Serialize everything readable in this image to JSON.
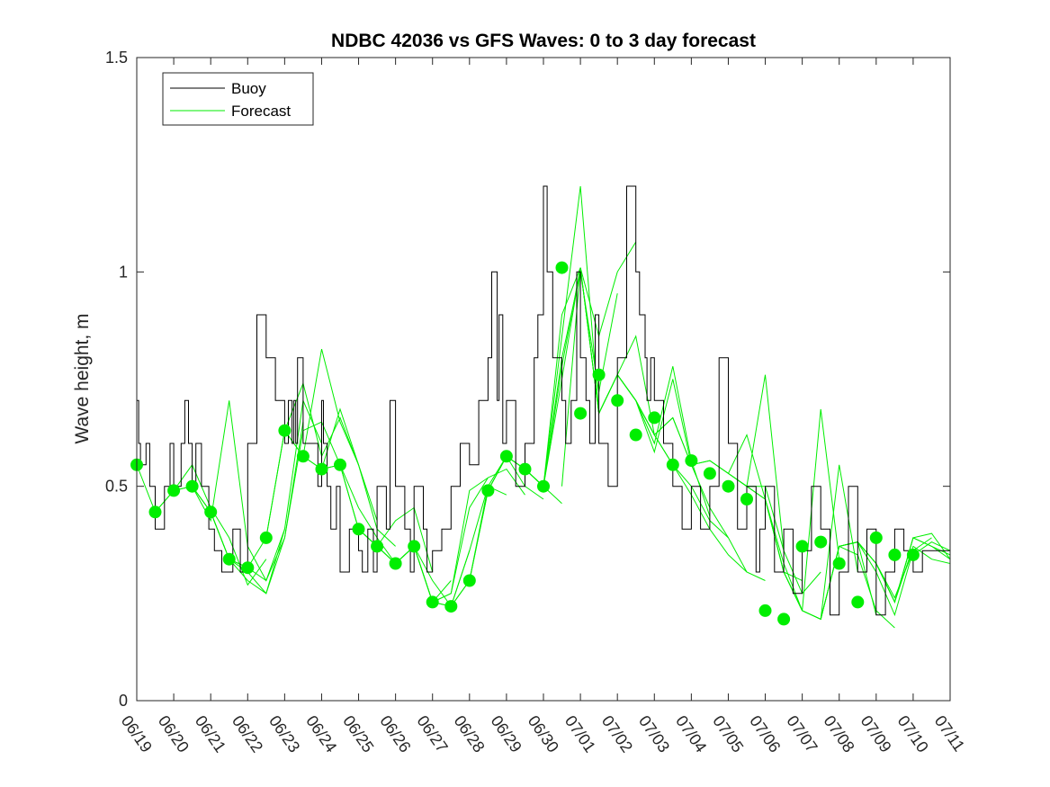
{
  "chart_data": {
    "type": "line",
    "title": "NDBC 42036 vs GFS Waves: 0 to 3 day forecast",
    "xlabel": "",
    "ylabel": "Wave height, m",
    "ylim": [
      0,
      1.5
    ],
    "xlim_days": [
      0,
      22
    ],
    "y_ticks": [
      "0",
      "0.5",
      "1",
      "1.5"
    ],
    "x_ticks": [
      "06/19",
      "06/20",
      "06/21",
      "06/22",
      "06/23",
      "06/24",
      "06/25",
      "06/26",
      "06/27",
      "06/28",
      "06/29",
      "06/30",
      "07/01",
      "07/02",
      "07/03",
      "07/04",
      "07/05",
      "07/06",
      "07/07",
      "07/08",
      "07/09",
      "07/10",
      "07/11"
    ],
    "grid": false,
    "legend": {
      "position": "top-left",
      "entries": [
        "Buoy",
        "Forecast"
      ]
    },
    "colors": {
      "buoy": "#000000",
      "forecast": "#00ee00"
    },
    "series": [
      {
        "name": "Buoy",
        "x": [
          0,
          0.05,
          0.1,
          0.25,
          0.35,
          0.5,
          0.75,
          0.9,
          1.0,
          1.2,
          1.3,
          1.4,
          1.5,
          1.6,
          1.75,
          1.95,
          2.1,
          2.3,
          2.5,
          2.6,
          2.8,
          3.0,
          3.25,
          3.5,
          3.75,
          4.0,
          4.1,
          4.2,
          4.25,
          4.3,
          4.35,
          4.5,
          4.9,
          5.0,
          5.05,
          5.15,
          5.25,
          5.4,
          5.5,
          5.75,
          6.0,
          6.1,
          6.25,
          6.4,
          6.5,
          6.75,
          6.85,
          7.0,
          7.25,
          7.4,
          7.5,
          7.75,
          7.85,
          8.0,
          8.25,
          8.5,
          8.75,
          9.0,
          9.25,
          9.5,
          9.6,
          9.75,
          9.8,
          9.9,
          10.0,
          10.25,
          10.4,
          10.5,
          10.75,
          10.85,
          11.0,
          11.1,
          11.25,
          11.5,
          11.6,
          11.75,
          11.9,
          12.0,
          12.15,
          12.25,
          12.4,
          12.5,
          12.75,
          13.0,
          13.25,
          13.5,
          13.6,
          13.75,
          13.8,
          13.9,
          14.0,
          14.25,
          14.5,
          14.75,
          15.0,
          15.25,
          15.5,
          15.75,
          16.0,
          16.25,
          16.5,
          16.75,
          16.85,
          17.0,
          17.25,
          17.5,
          17.75,
          18.0,
          18.25,
          18.5,
          18.75,
          19.0,
          19.25,
          19.5,
          19.75,
          20.0,
          20.25,
          20.5,
          20.75,
          21.0,
          21.25
        ],
        "y": [
          0.7,
          0.6,
          0.55,
          0.6,
          0.5,
          0.4,
          0.5,
          0.6,
          0.5,
          0.6,
          0.7,
          0.6,
          0.5,
          0.6,
          0.5,
          0.4,
          0.35,
          0.3,
          0.3,
          0.4,
          0.3,
          0.6,
          0.9,
          0.8,
          0.7,
          0.6,
          0.7,
          0.6,
          0.7,
          0.6,
          0.8,
          0.6,
          0.5,
          0.7,
          0.6,
          0.5,
          0.4,
          0.5,
          0.3,
          0.4,
          0.35,
          0.3,
          0.4,
          0.3,
          0.5,
          0.4,
          0.7,
          0.5,
          0.4,
          0.3,
          0.5,
          0.4,
          0.3,
          0.35,
          0.4,
          0.5,
          0.6,
          0.55,
          0.7,
          0.8,
          1.0,
          0.7,
          0.9,
          0.6,
          0.7,
          0.5,
          0.5,
          0.6,
          0.8,
          0.9,
          1.2,
          1.0,
          0.8,
          0.7,
          0.6,
          0.7,
          1.0,
          0.8,
          0.7,
          0.6,
          0.9,
          0.6,
          0.5,
          0.8,
          1.2,
          1.0,
          0.9,
          0.8,
          0.7,
          0.8,
          0.7,
          0.6,
          0.5,
          0.4,
          0.5,
          0.4,
          0.5,
          0.8,
          0.6,
          0.4,
          0.5,
          0.3,
          0.4,
          0.5,
          0.3,
          0.4,
          0.25,
          0.35,
          0.5,
          0.4,
          0.2,
          0.3,
          0.5,
          0.3,
          0.4,
          0.2,
          0.3,
          0.4,
          0.35,
          0.3,
          0.35
        ]
      }
    ],
    "forecast_runs": [
      {
        "x": [
          0,
          0.5,
          1.0,
          1.5,
          2.0,
          2.5,
          3.0
        ],
        "y": [
          0.55,
          0.44,
          0.49,
          0.5,
          0.44,
          0.33,
          0.31
        ]
      },
      {
        "x": [
          0.5,
          1.0,
          1.5,
          2.0,
          2.5,
          3.0,
          3.5
        ],
        "y": [
          0.44,
          0.49,
          0.55,
          0.45,
          0.38,
          0.27,
          0.33
        ]
      },
      {
        "x": [
          1.0,
          1.5,
          2.0,
          2.5,
          3.0,
          3.5,
          4.0
        ],
        "y": [
          0.49,
          0.5,
          0.42,
          0.7,
          0.36,
          0.28,
          0.4
        ]
      },
      {
        "x": [
          1.5,
          2.0,
          2.5,
          3.0,
          3.5,
          4.0,
          4.5
        ],
        "y": [
          0.5,
          0.44,
          0.33,
          0.28,
          0.25,
          0.38,
          0.65
        ]
      },
      {
        "x": [
          2.0,
          2.5,
          3.0,
          3.5,
          4.0,
          4.5,
          5.0
        ],
        "y": [
          0.44,
          0.33,
          0.3,
          0.25,
          0.4,
          0.7,
          0.6
        ]
      },
      {
        "x": [
          2.5,
          3.0,
          3.5,
          4.0,
          4.5,
          5.0,
          5.5
        ],
        "y": [
          0.33,
          0.31,
          0.28,
          0.38,
          0.63,
          0.65,
          0.55
        ]
      },
      {
        "x": [
          3.0,
          3.5,
          4.0,
          4.5,
          5.0,
          5.5,
          6.0
        ],
        "y": [
          0.31,
          0.38,
          0.63,
          0.57,
          0.82,
          0.65,
          0.55
        ]
      },
      {
        "x": [
          3.5,
          4.0,
          4.5,
          5.0,
          5.5,
          6.0,
          6.5
        ],
        "y": [
          0.38,
          0.63,
          0.74,
          0.57,
          0.66,
          0.55,
          0.42
        ]
      },
      {
        "x": [
          4.0,
          4.5,
          5.0,
          5.5,
          6.0,
          6.5,
          7.0
        ],
        "y": [
          0.63,
          0.57,
          0.54,
          0.68,
          0.55,
          0.4,
          0.36
        ]
      },
      {
        "x": [
          4.5,
          5.0,
          5.5,
          6.0,
          6.5,
          7.0,
          7.5
        ],
        "y": [
          0.57,
          0.54,
          0.55,
          0.45,
          0.38,
          0.32,
          0.36
        ]
      },
      {
        "x": [
          5.0,
          5.5,
          6.0,
          6.5,
          7.0,
          7.5,
          8.0
        ],
        "y": [
          0.54,
          0.55,
          0.4,
          0.36,
          0.42,
          0.45,
          0.3
        ]
      },
      {
        "x": [
          5.5,
          6.0,
          6.5,
          7.0,
          7.5,
          8.0,
          8.5
        ],
        "y": [
          0.55,
          0.4,
          0.36,
          0.32,
          0.36,
          0.23,
          0.28
        ]
      },
      {
        "x": [
          6.0,
          6.5,
          7.0,
          7.5,
          8.0,
          8.5,
          9.0
        ],
        "y": [
          0.4,
          0.36,
          0.32,
          0.36,
          0.28,
          0.22,
          0.35
        ]
      },
      {
        "x": [
          6.5,
          7.0,
          7.5,
          8.0,
          8.5,
          9.0,
          9.5
        ],
        "y": [
          0.36,
          0.32,
          0.36,
          0.23,
          0.25,
          0.49,
          0.52
        ]
      },
      {
        "x": [
          7.0,
          7.5,
          8.0,
          8.5,
          9.0,
          9.5,
          10.0
        ],
        "y": [
          0.32,
          0.36,
          0.23,
          0.22,
          0.35,
          0.5,
          0.48
        ]
      },
      {
        "x": [
          7.5,
          8.0,
          8.5,
          9.0,
          9.5,
          10.0,
          10.5
        ],
        "y": [
          0.36,
          0.23,
          0.25,
          0.45,
          0.52,
          0.54,
          0.48
        ]
      },
      {
        "x": [
          8.0,
          8.5,
          9.0,
          9.5,
          10.0,
          10.5,
          11.0
        ],
        "y": [
          0.23,
          0.22,
          0.28,
          0.5,
          0.57,
          0.5,
          0.47
        ]
      },
      {
        "x": [
          8.5,
          9.0,
          9.5,
          10.0,
          10.5,
          11.0,
          11.5
        ],
        "y": [
          0.22,
          0.28,
          0.49,
          0.57,
          0.54,
          0.5,
          0.46
        ]
      },
      {
        "x": [
          9.0,
          9.5,
          10.0,
          10.5,
          11.0,
          11.5,
          12.0
        ],
        "y": [
          0.28,
          0.49,
          0.57,
          0.54,
          0.5,
          0.9,
          1.01
        ]
      },
      {
        "x": [
          9.5,
          10.0,
          10.5,
          11.0,
          11.5,
          12.0,
          12.5
        ],
        "y": [
          0.49,
          0.57,
          0.54,
          0.5,
          0.85,
          1.2,
          0.67
        ]
      },
      {
        "x": [
          10.0,
          10.5,
          11.0,
          11.5,
          12.0,
          12.5,
          13.0
        ],
        "y": [
          0.57,
          0.54,
          0.5,
          0.8,
          1.0,
          0.72,
          0.95
        ]
      },
      {
        "x": [
          10.5,
          11.0,
          11.5,
          12.0,
          12.5,
          13.0,
          13.5
        ],
        "y": [
          0.54,
          0.5,
          0.78,
          1.01,
          0.85,
          1.0,
          1.07
        ]
      },
      {
        "x": [
          11.0,
          11.5,
          12.0,
          12.5,
          13.0,
          13.5,
          14.0
        ],
        "y": [
          0.5,
          0.75,
          1.01,
          0.67,
          0.76,
          0.7,
          0.62
        ]
      },
      {
        "x": [
          11.5,
          12.0,
          12.5,
          13.0,
          13.5,
          14.0,
          14.5
        ],
        "y": [
          0.5,
          1.01,
          0.67,
          0.76,
          0.85,
          0.62,
          0.66
        ]
      },
      {
        "x": [
          12.0,
          12.5,
          13.0,
          13.5,
          14.0,
          14.5,
          15.0
        ],
        "y": [
          1.01,
          0.67,
          0.76,
          0.7,
          0.58,
          0.75,
          0.55
        ]
      },
      {
        "x": [
          12.5,
          13.0,
          13.5,
          14.0,
          14.5,
          15.0,
          15.5
        ],
        "y": [
          0.67,
          0.76,
          0.7,
          0.6,
          0.78,
          0.56,
          0.43
        ]
      },
      {
        "x": [
          13.0,
          13.5,
          14.0,
          14.5,
          15.0,
          15.5,
          16.0
        ],
        "y": [
          0.76,
          0.7,
          0.62,
          0.55,
          0.5,
          0.42,
          0.38
        ]
      },
      {
        "x": [
          13.5,
          14.0,
          14.5,
          15.0,
          15.5,
          16.0,
          16.5
        ],
        "y": [
          0.7,
          0.62,
          0.55,
          0.48,
          0.4,
          0.34,
          0.3
        ]
      },
      {
        "x": [
          14.0,
          14.5,
          15.0,
          15.5,
          16.0,
          16.5,
          17.0
        ],
        "y": [
          0.62,
          0.66,
          0.55,
          0.45,
          0.38,
          0.3,
          0.28
        ]
      },
      {
        "x": [
          14.5,
          15.0,
          15.5,
          16.0,
          16.5,
          17.0,
          17.5
        ],
        "y": [
          0.66,
          0.55,
          0.56,
          0.53,
          0.5,
          0.5,
          0.35
        ]
      },
      {
        "x": [
          15.0,
          15.5,
          16.0,
          16.5,
          17.0,
          17.5,
          18.0
        ],
        "y": [
          0.55,
          0.56,
          0.53,
          0.62,
          0.47,
          0.3,
          0.28
        ]
      },
      {
        "x": [
          15.5,
          16.0,
          16.5,
          17.0,
          17.5,
          18.0,
          18.5
        ],
        "y": [
          0.56,
          0.53,
          0.5,
          0.76,
          0.35,
          0.25,
          0.3
        ]
      },
      {
        "x": [
          16.0,
          16.5,
          17.0,
          17.5,
          18.0,
          18.5,
          19.0
        ],
        "y": [
          0.53,
          0.5,
          0.47,
          0.32,
          0.21,
          0.68,
          0.33
        ]
      },
      {
        "x": [
          16.5,
          17.0,
          17.5,
          18.0,
          18.5,
          19.0,
          19.5
        ],
        "y": [
          0.5,
          0.47,
          0.3,
          0.21,
          0.19,
          0.55,
          0.3
        ]
      },
      {
        "x": [
          17.0,
          17.5,
          18.0,
          18.5,
          19.0,
          19.5,
          20.0
        ],
        "y": [
          0.47,
          0.3,
          0.21,
          0.19,
          0.36,
          0.37,
          0.2
        ]
      },
      {
        "x": [
          17.5,
          18.0,
          18.5,
          19.0,
          19.5,
          20.0,
          20.5
        ],
        "y": [
          0.3,
          0.21,
          0.19,
          0.36,
          0.34,
          0.21,
          0.17
        ]
      },
      {
        "x": [
          18.0,
          18.5,
          19.0,
          19.5,
          20.0,
          20.5,
          21.0
        ],
        "y": [
          0.21,
          0.19,
          0.36,
          0.37,
          0.3,
          0.2,
          0.35
        ]
      },
      {
        "x": [
          18.5,
          19.0,
          19.5,
          20.0,
          20.5,
          21.0,
          21.5
        ],
        "y": [
          0.19,
          0.36,
          0.37,
          0.32,
          0.24,
          0.35,
          0.38
        ]
      },
      {
        "x": [
          19.0,
          19.5,
          20.0,
          20.5,
          21.0,
          21.5,
          22.0
        ],
        "y": [
          0.36,
          0.37,
          0.32,
          0.23,
          0.36,
          0.33,
          0.32
        ]
      },
      {
        "x": [
          19.5,
          20.0,
          20.5,
          21.0,
          21.5,
          22.0
        ],
        "y": [
          0.37,
          0.32,
          0.23,
          0.38,
          0.36,
          0.34
        ]
      },
      {
        "x": [
          20.0,
          20.5,
          21.0,
          21.5,
          22.0
        ],
        "y": [
          0.32,
          0.23,
          0.38,
          0.39,
          0.33
        ]
      },
      {
        "x": [
          20.5,
          21.0,
          21.5,
          22.0
        ],
        "y": [
          0.23,
          0.38,
          0.36,
          0.33
        ]
      },
      {
        "x": [
          21.0,
          21.5,
          22.0
        ],
        "y": [
          0.34,
          0.37,
          0.35
        ]
      }
    ],
    "forecast_initial_points": {
      "x": [
        0,
        0.5,
        1.0,
        1.5,
        2.0,
        2.5,
        3.0,
        3.5,
        4.0,
        4.5,
        5.0,
        5.5,
        6.0,
        6.5,
        7.0,
        7.5,
        8.0,
        8.5,
        9.0,
        9.5,
        10.0,
        10.5,
        11.0,
        11.5,
        12.0,
        12.5,
        13.0,
        13.5,
        14.0,
        14.5,
        15.0,
        15.5,
        16.0,
        16.5,
        17.0,
        17.5,
        18.0,
        18.5,
        19.0,
        19.5,
        20.0,
        20.5,
        21.0
      ],
      "y": [
        0.55,
        0.44,
        0.49,
        0.5,
        0.44,
        0.33,
        0.31,
        0.38,
        0.63,
        0.57,
        0.54,
        0.55,
        0.4,
        0.36,
        0.32,
        0.36,
        0.23,
        0.22,
        0.28,
        0.49,
        0.57,
        0.54,
        0.5,
        1.01,
        0.67,
        0.76,
        0.7,
        0.62,
        0.66,
        0.55,
        0.56,
        0.53,
        0.5,
        0.47,
        0.21,
        0.19,
        0.36,
        0.37,
        0.32,
        0.23,
        0.38,
        0.34,
        0.34
      ]
    }
  }
}
